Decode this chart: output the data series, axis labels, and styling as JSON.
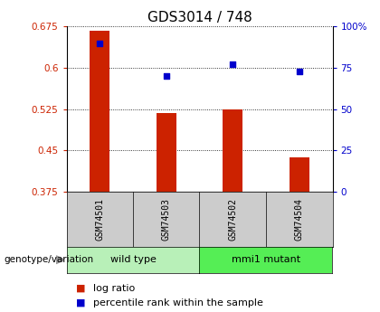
{
  "title": "GDS3014 / 748",
  "samples": [
    "GSM74501",
    "GSM74503",
    "GSM74502",
    "GSM74504"
  ],
  "log_ratio": [
    0.668,
    0.518,
    0.524,
    0.438
  ],
  "percentile_rank_pct": [
    90,
    70,
    77,
    73
  ],
  "ylim_left": [
    0.375,
    0.675
  ],
  "ylim_right": [
    0,
    100
  ],
  "yticks_left": [
    0.375,
    0.45,
    0.525,
    0.6,
    0.675
  ],
  "ytick_labels_left": [
    "0.375",
    "0.45",
    "0.525",
    "0.6",
    "0.675"
  ],
  "yticks_right": [
    0,
    25,
    50,
    75,
    100
  ],
  "ytick_labels_right": [
    "0",
    "25",
    "50",
    "75",
    "100%"
  ],
  "bar_color": "#cc2200",
  "dot_color": "#0000cc",
  "bar_bottom": 0.375,
  "groups": [
    {
      "label": "wild type",
      "span": [
        0,
        2
      ],
      "color": "#b8f0b8"
    },
    {
      "label": "mmi1 mutant",
      "span": [
        2,
        4
      ],
      "color": "#55ee55"
    }
  ],
  "group_label": "genotype/variation",
  "legend_bar_label": "log ratio",
  "legend_dot_label": "percentile rank within the sample",
  "left_tick_color": "#cc2200",
  "right_tick_color": "#0000cc",
  "sample_box_color": "#cccccc",
  "title_fontsize": 11,
  "tick_fontsize": 7.5,
  "sample_fontsize": 7,
  "group_fontsize": 8,
  "legend_fontsize": 8
}
